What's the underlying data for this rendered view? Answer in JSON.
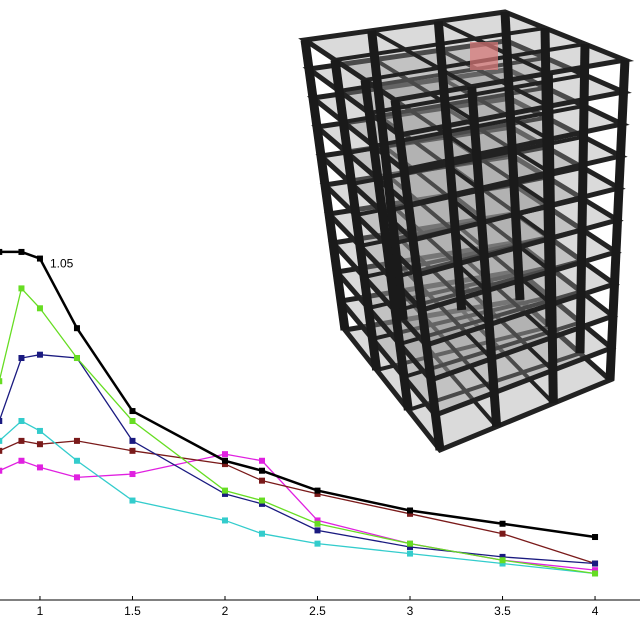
{
  "chart_data": {
    "type": "line",
    "annotation": "1.05",
    "x": [
      0.78,
      0.9,
      1,
      1.2,
      1.5,
      2,
      2.2,
      2.5,
      3,
      3.5,
      4
    ],
    "series": [
      {
        "color": "#000000",
        "values": [
          1.05,
          1.05,
          1.03,
          0.82,
          0.57,
          0.42,
          0.39,
          0.33,
          0.27,
          0.23,
          0.19
        ]
      },
      {
        "color": "#66dd22",
        "values": [
          0.66,
          0.94,
          0.88,
          0.73,
          0.54,
          0.33,
          0.3,
          0.23,
          0.17,
          0.12,
          0.08
        ]
      },
      {
        "color": "#1a1a80",
        "values": [
          0.54,
          0.73,
          0.74,
          0.73,
          0.48,
          0.32,
          0.29,
          0.21,
          0.16,
          0.13,
          0.11
        ]
      },
      {
        "color": "#33cccc",
        "values": [
          0.48,
          0.54,
          0.51,
          0.42,
          0.3,
          0.24,
          0.2,
          0.17,
          0.14,
          0.11,
          0.08
        ]
      },
      {
        "color": "#7a1a1a",
        "values": [
          0.45,
          0.48,
          0.47,
          0.48,
          0.45,
          0.41,
          0.36,
          0.32,
          0.26,
          0.2,
          0.11
        ]
      },
      {
        "color": "#e020e0",
        "values": [
          0.39,
          0.42,
          0.4,
          0.37,
          0.38,
          0.44,
          0.42,
          0.24,
          0.17,
          0.12,
          0.09
        ]
      }
    ],
    "xlim": [
      0.784,
      4.243
    ],
    "ylim": [
      0,
      1.81
    ],
    "xticks": [
      1,
      1.5,
      2,
      2.5,
      3,
      3.5,
      4
    ]
  }
}
